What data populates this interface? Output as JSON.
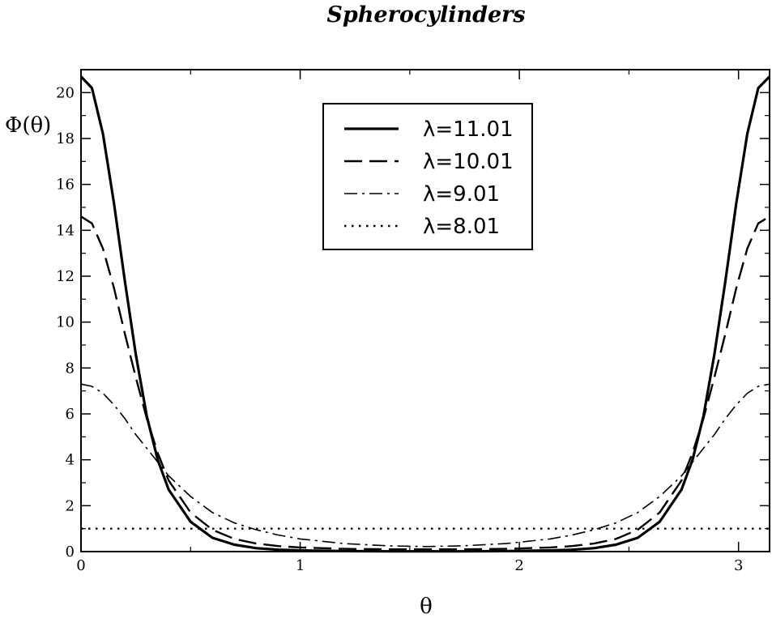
{
  "chart_data": {
    "type": "line",
    "title": "Spherocylinders",
    "xlabel": "θ",
    "ylabel": "Φ(θ)",
    "xlim": [
      0,
      3.14159
    ],
    "ylim": [
      0,
      21
    ],
    "x_ticks": [
      0,
      1,
      2,
      3
    ],
    "y_ticks": [
      0,
      2,
      4,
      6,
      8,
      10,
      12,
      14,
      16,
      18,
      20
    ],
    "grid": false,
    "legend_position": "top-center",
    "series": [
      {
        "name": "λ=11.01",
        "style": "solid",
        "x": [
          0,
          0.05,
          0.1,
          0.15,
          0.2,
          0.25,
          0.3,
          0.35,
          0.4,
          0.5,
          0.6,
          0.7,
          0.8,
          0.9,
          1.0,
          1.2,
          1.4,
          1.5708,
          1.74,
          1.94,
          2.14,
          2.24,
          2.34,
          2.44,
          2.54,
          2.64,
          2.74,
          2.79,
          2.84,
          2.89,
          2.94,
          2.99,
          3.04,
          3.09,
          3.14159
        ],
        "y": [
          20.7,
          20.2,
          18.2,
          15.2,
          11.8,
          8.6,
          5.9,
          4.0,
          2.7,
          1.3,
          0.6,
          0.3,
          0.15,
          0.08,
          0.05,
          0.02,
          0.01,
          0.01,
          0.01,
          0.02,
          0.05,
          0.08,
          0.15,
          0.3,
          0.6,
          1.3,
          2.7,
          4.0,
          5.9,
          8.6,
          11.8,
          15.2,
          18.2,
          20.2,
          20.7
        ]
      },
      {
        "name": "λ=10.01",
        "style": "dashed",
        "x": [
          0,
          0.05,
          0.1,
          0.15,
          0.2,
          0.25,
          0.3,
          0.35,
          0.4,
          0.5,
          0.6,
          0.7,
          0.8,
          0.9,
          1.0,
          1.2,
          1.4,
          1.5708,
          1.74,
          1.94,
          2.14,
          2.24,
          2.34,
          2.44,
          2.54,
          2.64,
          2.74,
          2.79,
          2.84,
          2.89,
          2.94,
          2.99,
          3.04,
          3.09,
          3.14159
        ],
        "y": [
          14.6,
          14.3,
          13.2,
          11.5,
          9.5,
          7.6,
          5.8,
          4.3,
          3.1,
          1.7,
          0.95,
          0.55,
          0.35,
          0.24,
          0.18,
          0.12,
          0.1,
          0.1,
          0.1,
          0.12,
          0.18,
          0.24,
          0.35,
          0.55,
          0.95,
          1.7,
          3.1,
          4.3,
          5.8,
          7.6,
          9.5,
          11.5,
          13.2,
          14.3,
          14.6
        ]
      },
      {
        "name": "λ=9.01",
        "style": "dash-dot",
        "x": [
          0,
          0.05,
          0.1,
          0.15,
          0.2,
          0.25,
          0.3,
          0.35,
          0.4,
          0.5,
          0.6,
          0.7,
          0.8,
          0.9,
          1.0,
          1.2,
          1.4,
          1.5708,
          1.74,
          1.94,
          2.14,
          2.24,
          2.34,
          2.44,
          2.54,
          2.64,
          2.74,
          2.79,
          2.84,
          2.89,
          2.94,
          2.99,
          3.04,
          3.09,
          3.14159
        ],
        "y": [
          7.3,
          7.2,
          6.9,
          6.4,
          5.8,
          5.1,
          4.5,
          3.9,
          3.3,
          2.4,
          1.7,
          1.25,
          0.95,
          0.72,
          0.55,
          0.35,
          0.25,
          0.22,
          0.25,
          0.35,
          0.55,
          0.72,
          0.95,
          1.25,
          1.7,
          2.4,
          3.3,
          3.9,
          4.5,
          5.1,
          5.8,
          6.4,
          6.9,
          7.2,
          7.3
        ]
      },
      {
        "name": "λ=8.01",
        "style": "dotted",
        "x": [
          0,
          3.14159
        ],
        "y": [
          1.0,
          1.0
        ]
      }
    ]
  }
}
